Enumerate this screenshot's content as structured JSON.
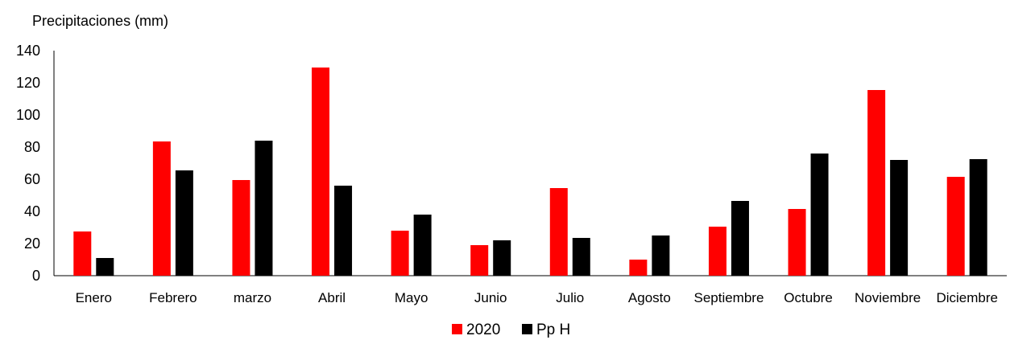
{
  "chart_data": {
    "type": "bar",
    "ylabel": "Precipitaciones (mm)",
    "xlabel": "",
    "ylim": [
      0,
      140
    ],
    "yticks": [
      0,
      20,
      40,
      60,
      80,
      100,
      120,
      140
    ],
    "categories": [
      "Enero",
      "Febrero",
      "marzo",
      "Abril",
      "Mayo",
      "Junio",
      "Julio",
      "Agosto",
      "Septiembre",
      "Octubre",
      "Noviembre",
      "Diciembre"
    ],
    "series": [
      {
        "name": "2020",
        "color": "#ff0000",
        "values": [
          27.5,
          83.5,
          59.5,
          129.5,
          28.0,
          19.0,
          54.5,
          10.0,
          30.5,
          41.5,
          115.5,
          61.5
        ]
      },
      {
        "name": "Pp H",
        "color": "#000000",
        "values": [
          11.0,
          65.5,
          84.0,
          56.0,
          38.0,
          22.0,
          23.5,
          25.0,
          46.5,
          76.0,
          72.0,
          72.5
        ]
      }
    ],
    "grid": false,
    "legend": "bottom-center"
  }
}
